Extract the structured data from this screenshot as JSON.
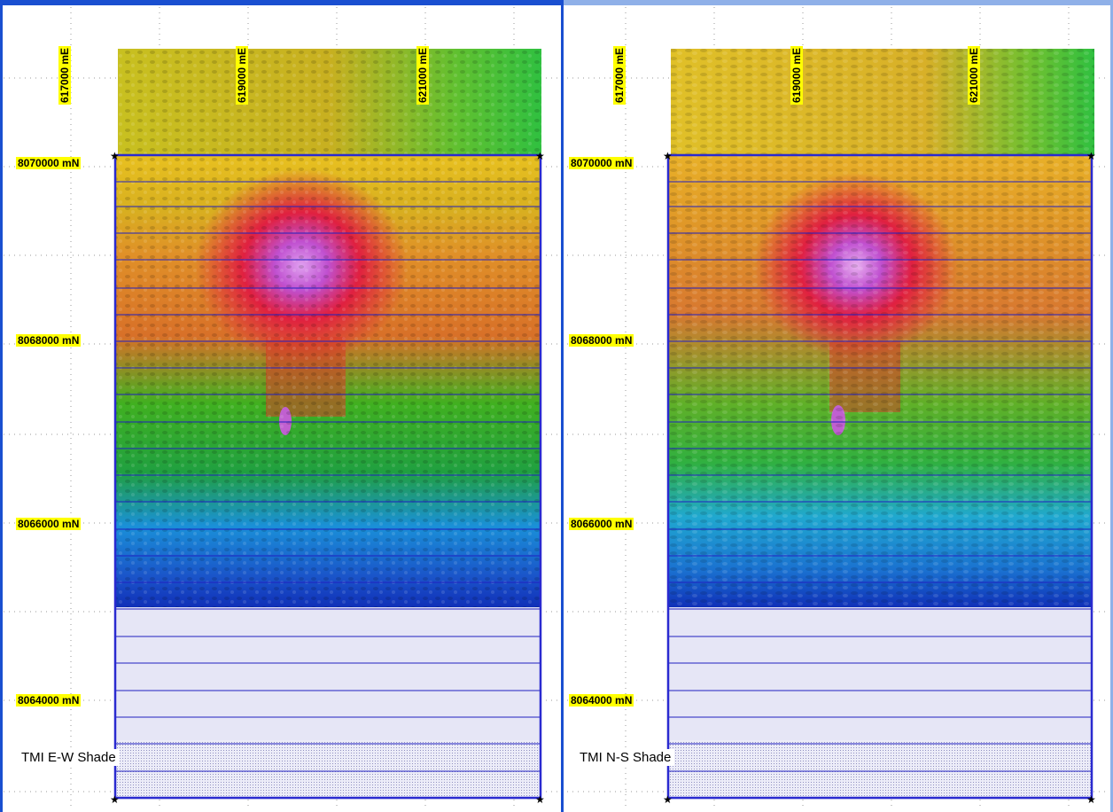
{
  "panels": [
    {
      "title": "TMI E-W Shade",
      "x_ticks": [
        "617000 mE",
        "619000 mE",
        "621000 mE"
      ],
      "y_ticks": [
        "8070000 mN",
        "8068000 mN",
        "8066000 mN",
        "8064000 mN"
      ]
    },
    {
      "title": "TMI N-S Shade",
      "x_ticks": [
        "617000 mE",
        "619000 mE",
        "621000 mE"
      ],
      "y_ticks": [
        "8070000 mN",
        "8068000 mN",
        "8066000 mN",
        "8064000 mN"
      ]
    }
  ],
  "colors": {
    "label_background": "#ffff00",
    "flight_line": "#2020c0",
    "survey_boundary": "#2a2ad0",
    "no_data_fill": "#e6e6f6",
    "left_panel_border": "#1a4fd0",
    "right_panel_border": "#8fb0e8"
  },
  "color_ramp": [
    "#1010c0",
    "#1aa0e0",
    "#20c020",
    "#e0d020",
    "#e09030",
    "#e02020",
    "#d080e0"
  ]
}
